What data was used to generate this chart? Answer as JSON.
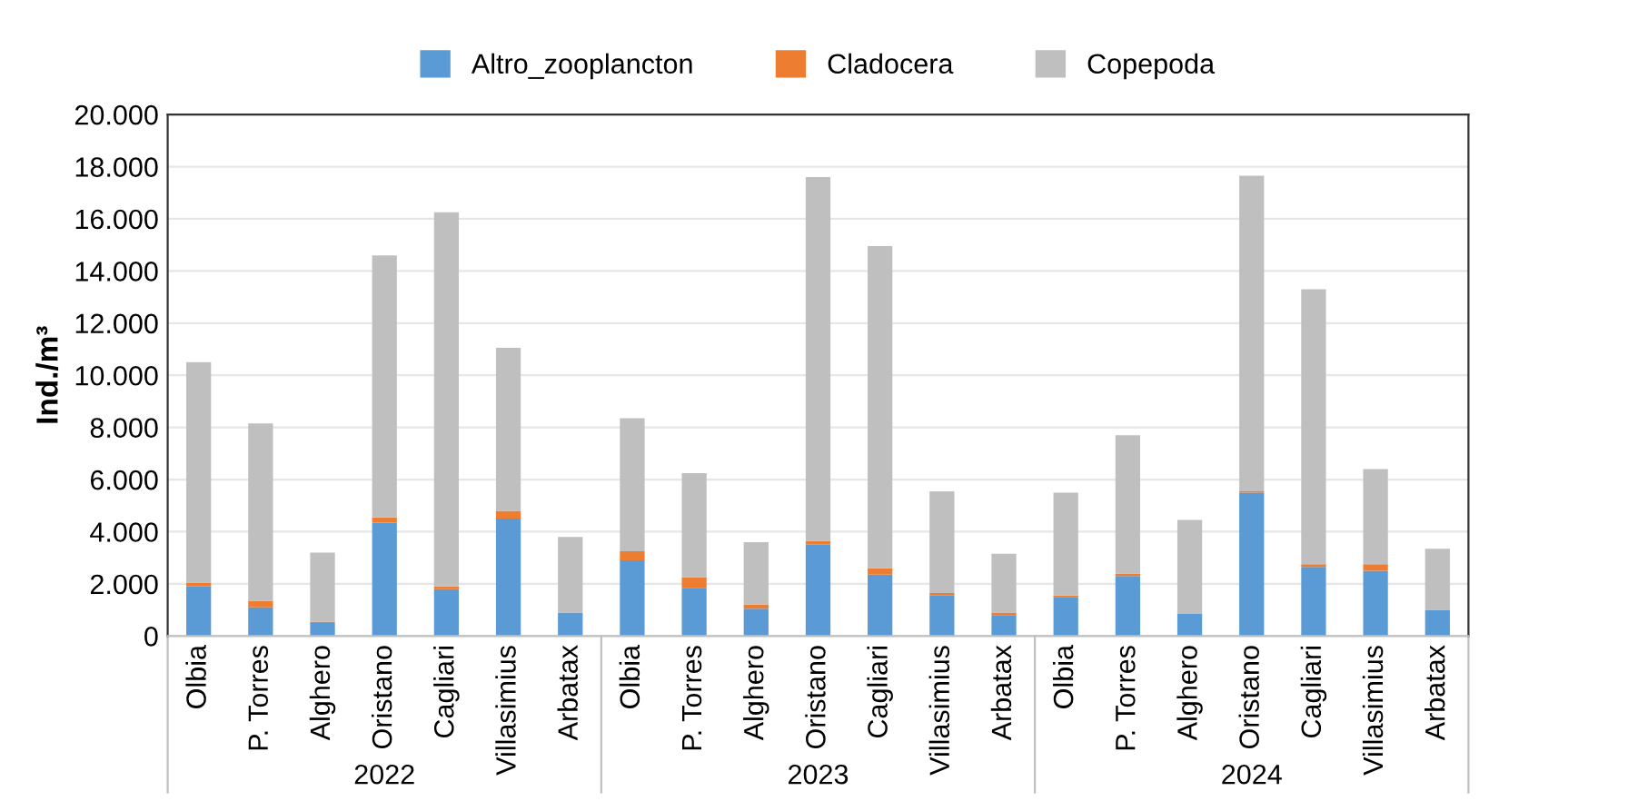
{
  "chart_data": {
    "type": "bar",
    "stacked": true,
    "ylabel": "Ind./m³",
    "categories": [
      "Olbia",
      "P. Torres",
      "Alghero",
      "Oristano",
      "Cagliari",
      "Villasimius",
      "Arbatax",
      "Olbia",
      "P. Torres",
      "Alghero",
      "Oristano",
      "Cagliari",
      "Villasimius",
      "Arbatax",
      "Olbia",
      "P. Torres",
      "Alghero",
      "Oristano",
      "Cagliari",
      "Villasimius",
      "Arbatax"
    ],
    "series": [
      {
        "name": "Altro_zooplancton",
        "color": "#5b9bd5",
        "values": [
          1900,
          1100,
          500,
          4350,
          1800,
          4500,
          900,
          2900,
          1850,
          1050,
          3500,
          2350,
          1550,
          800,
          1500,
          2300,
          850,
          5500,
          2650,
          2500,
          1000
        ]
      },
      {
        "name": "Cladocera",
        "color": "#ed7d31",
        "values": [
          150,
          250,
          50,
          200,
          100,
          300,
          0,
          350,
          400,
          150,
          150,
          250,
          100,
          100,
          50,
          100,
          0,
          50,
          100,
          250,
          0
        ]
      },
      {
        "name": "Copepoda",
        "color": "#bfbfbf",
        "values": [
          8450,
          6800,
          2650,
          10050,
          14350,
          6250,
          2900,
          5100,
          4000,
          2400,
          13950,
          12350,
          3900,
          2250,
          3950,
          5300,
          3600,
          12100,
          10550,
          3650,
          2350
        ]
      }
    ],
    "ylim": [
      0,
      20000
    ],
    "yticks": [
      0,
      {
        "value": 2000,
        "label": "2.000"
      },
      {
        "value": 4000,
        "label": "4.000"
      },
      {
        "value": 6000,
        "label": "6.000"
      },
      {
        "value": 8000,
        "label": "8.000"
      },
      {
        "value": 10000,
        "label": "10.000"
      },
      {
        "value": 12000,
        "label": "12.000"
      },
      {
        "value": 14000,
        "label": "14.000"
      },
      {
        "value": 16000,
        "label": "16.000"
      },
      {
        "value": 18000,
        "label": "18.000"
      },
      {
        "value": 20000,
        "label": "20.000"
      }
    ],
    "annotations": [
      "2022",
      "2023",
      "2024"
    ],
    "grid": "y",
    "legend": "top"
  }
}
